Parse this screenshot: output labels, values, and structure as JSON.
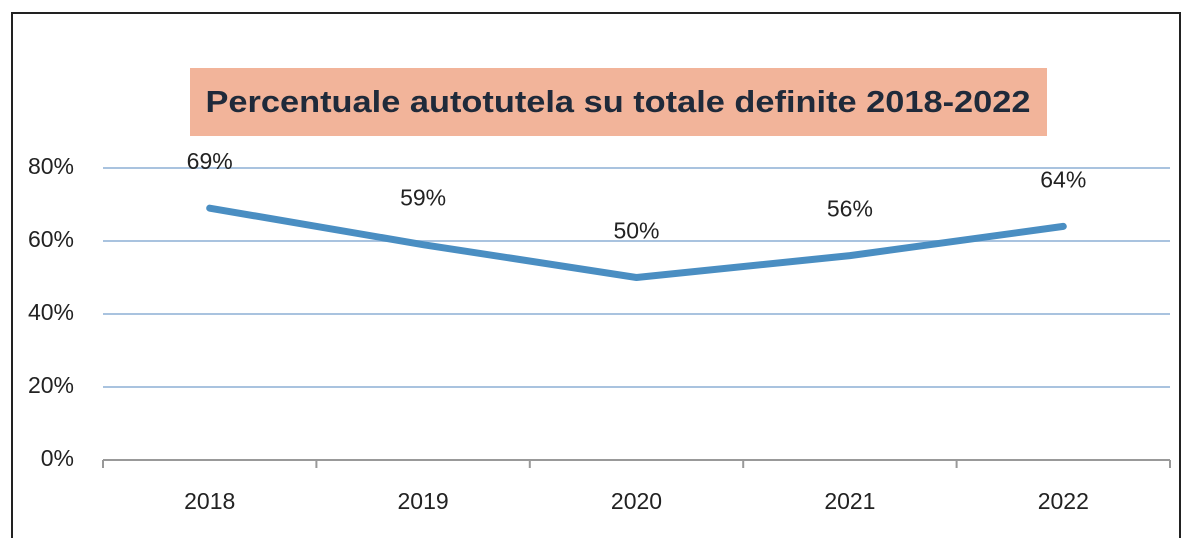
{
  "chart_data": {
    "type": "line",
    "title": "Percentuale autotutela su totale definite 2018-2022",
    "categories": [
      "2018",
      "2019",
      "2020",
      "2021",
      "2022"
    ],
    "series": [
      {
        "name": "Percentuale",
        "color": "#4a8ec2",
        "values": [
          69,
          59,
          50,
          56,
          64
        ],
        "value_labels": [
          "69%",
          "59%",
          "50%",
          "56%",
          "64%"
        ]
      }
    ],
    "ylim": [
      0,
      80
    ],
    "yticks": [
      {
        "value": 0,
        "label": "0%"
      },
      {
        "value": 20,
        "label": "20%"
      },
      {
        "value": 40,
        "label": "40%"
      },
      {
        "value": 60,
        "label": "60%"
      },
      {
        "value": 80,
        "label": "80%"
      }
    ],
    "grid": true,
    "title_background": "#f2b49a"
  }
}
